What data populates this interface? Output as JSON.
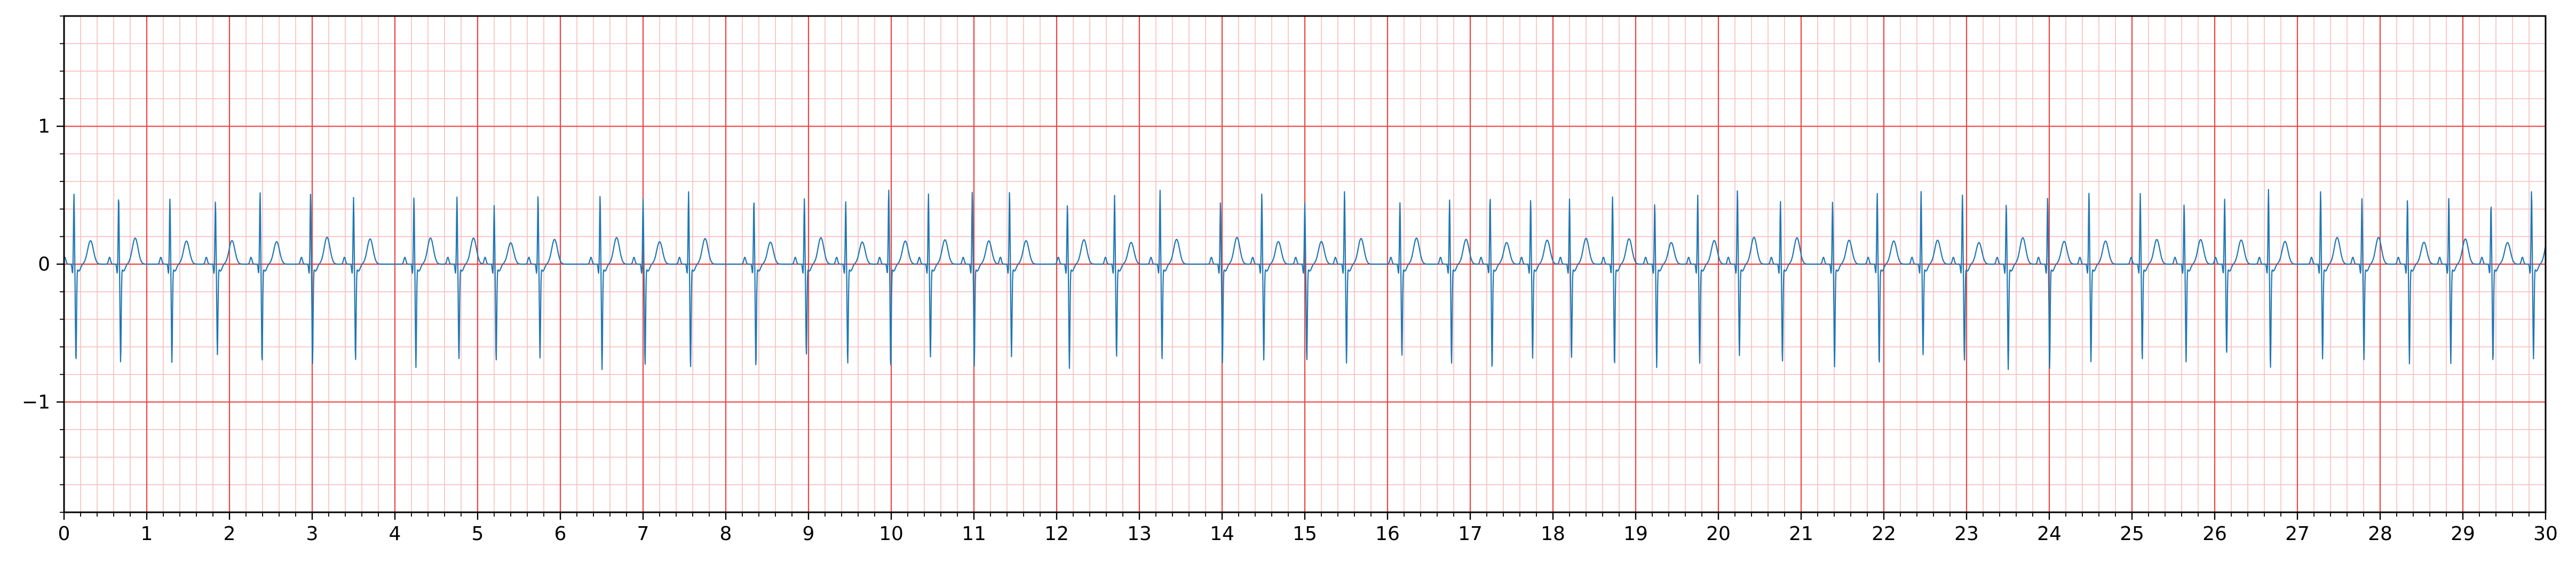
{
  "chart_data": {
    "type": "line",
    "title": "",
    "xlabel": "",
    "ylabel": "",
    "xlim": [
      0,
      30
    ],
    "ylim": [
      -1.8,
      1.8
    ],
    "x_ticks": [
      0,
      1,
      2,
      3,
      4,
      5,
      6,
      7,
      8,
      9,
      10,
      11,
      12,
      13,
      14,
      15,
      16,
      17,
      18,
      19,
      20,
      21,
      22,
      23,
      24,
      25,
      26,
      27,
      28,
      29,
      30
    ],
    "x_tick_labels": [
      "0",
      "1",
      "2",
      "3",
      "4",
      "5",
      "6",
      "7",
      "8",
      "9",
      "10",
      "11",
      "12",
      "13",
      "14",
      "15",
      "16",
      "17",
      "18",
      "19",
      "20",
      "21",
      "22",
      "23",
      "24",
      "25",
      "26",
      "27",
      "28",
      "29",
      "30"
    ],
    "y_ticks": [
      -1,
      0,
      1
    ],
    "y_tick_labels": [
      "−1",
      "0",
      "1"
    ],
    "grid": {
      "major": true,
      "minor": true,
      "major_step_x": 1,
      "major_step_y": 1,
      "minor_step_x": 0.2,
      "minor_step_y": 0.2,
      "major_color": "#ee4444",
      "minor_color": "#f8bcbc"
    },
    "line_color": "#1f77b4",
    "beats": {
      "r_peak_times": [
        0.12,
        0.66,
        1.28,
        1.83,
        2.37,
        2.98,
        3.5,
        4.23,
        4.75,
        5.2,
        5.73,
        6.48,
        7.0,
        7.55,
        8.34,
        8.95,
        9.45,
        9.97,
        10.45,
        10.98,
        11.43,
        12.13,
        12.7,
        13.25,
        13.98,
        14.48,
        15.0,
        15.48,
        16.15,
        16.75,
        17.24,
        17.73,
        18.2,
        18.72,
        19.23,
        19.75,
        20.23,
        20.75,
        21.38,
        21.92,
        22.45,
        22.95,
        23.48,
        23.98,
        24.48,
        25.1,
        25.63,
        26.12,
        26.65,
        27.28,
        27.78,
        28.33,
        28.83,
        29.34,
        29.83
      ],
      "r_amplitude": 0.5,
      "s_amplitude": -0.7,
      "t_amplitude": 0.17
    }
  }
}
